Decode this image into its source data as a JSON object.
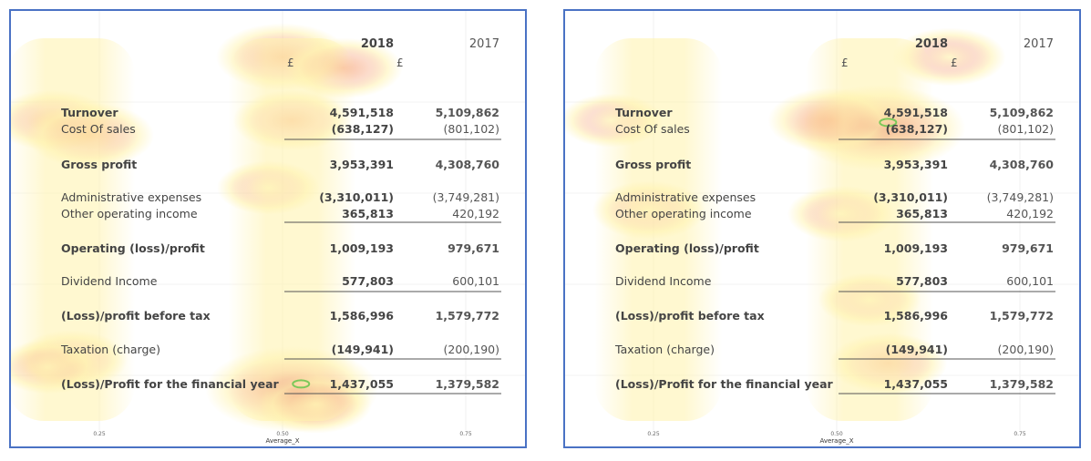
{
  "table": {
    "columns": [
      "2018",
      "2017"
    ],
    "currency": [
      "£",
      "£"
    ],
    "rows": [
      {
        "label": "Turnover",
        "y2018": "4,591,518",
        "y2017": "5,109,862",
        "bold": true
      },
      {
        "label": "Cost Of sales",
        "y2018": "(638,127)",
        "y2017": "(801,102)",
        "bold": false
      },
      {
        "label": "Gross profit",
        "y2018": "3,953,391",
        "y2017": "4,308,760",
        "bold": true
      },
      {
        "label": "Administrative expenses",
        "y2018": "(3,310,011)",
        "y2017": "(3,749,281)",
        "bold": false
      },
      {
        "label": "Other operating income",
        "y2018": "365,813",
        "y2017": "420,192",
        "bold": false
      },
      {
        "label": "Operating (loss)/profit",
        "y2018": "1,009,193",
        "y2017": "979,671",
        "bold": true
      },
      {
        "label": "Dividend Income",
        "y2018": "577,803",
        "y2017": "600,101",
        "bold": false
      },
      {
        "label": "(Loss)/profit before tax",
        "y2018": "1,586,996",
        "y2017": "1,579,772",
        "bold": true
      },
      {
        "label": "Taxation (charge)",
        "y2018": "(149,941)",
        "y2017": "(200,190)",
        "bold": false
      },
      {
        "label": "(Loss)/Profit for the financial year",
        "y2018": "1,437,055",
        "y2017": "1,379,582",
        "bold": true
      }
    ]
  },
  "chart_data": [
    {
      "type": "heatmap",
      "xlabel": "Average_X",
      "x_ticks": [
        "0.25",
        "0.50",
        "0.75"
      ],
      "colors": {
        "low": "#fff3b0",
        "mid": "#f7a47a",
        "high": "#d83a5e",
        "peak_contour": "#7cc85a"
      },
      "hotspots": [
        {
          "x": 0.55,
          "y": 0.94,
          "intensity": 1.0
        },
        {
          "x": 0.53,
          "y": 0.05,
          "intensity": 0.6
        },
        {
          "x": 0.66,
          "y": 0.08,
          "intensity": 0.45
        },
        {
          "x": 0.04,
          "y": 0.22,
          "intensity": 0.45
        },
        {
          "x": 0.12,
          "y": 0.26,
          "intensity": 0.55
        },
        {
          "x": 0.55,
          "y": 0.22,
          "intensity": 0.45
        },
        {
          "x": 0.5,
          "y": 0.4,
          "intensity": 0.3
        },
        {
          "x": 0.08,
          "y": 0.86,
          "intensity": 0.4
        },
        {
          "x": 0.03,
          "y": 0.88,
          "intensity": 0.3
        },
        {
          "x": 0.6,
          "y": 0.98,
          "intensity": 0.4
        }
      ]
    },
    {
      "type": "heatmap",
      "xlabel": "Average_X",
      "x_ticks": [
        "0.25",
        "0.50",
        "0.75"
      ],
      "colors": {
        "low": "#fff3b0",
        "mid": "#f7a47a",
        "high": "#d83a5e",
        "peak_contour": "#7cc85a"
      },
      "hotspots": [
        {
          "x": 0.62,
          "y": 0.24,
          "intensity": 1.0
        },
        {
          "x": 0.52,
          "y": 0.22,
          "intensity": 0.55
        },
        {
          "x": 0.77,
          "y": 0.05,
          "intensity": 0.4
        },
        {
          "x": 0.54,
          "y": 0.47,
          "intensity": 0.35
        },
        {
          "x": 0.64,
          "y": 0.87,
          "intensity": 0.45
        },
        {
          "x": 0.13,
          "y": 0.46,
          "intensity": 0.4
        },
        {
          "x": 0.05,
          "y": 0.22,
          "intensity": 0.3
        },
        {
          "x": 0.6,
          "y": 0.7,
          "intensity": 0.3
        }
      ]
    }
  ]
}
